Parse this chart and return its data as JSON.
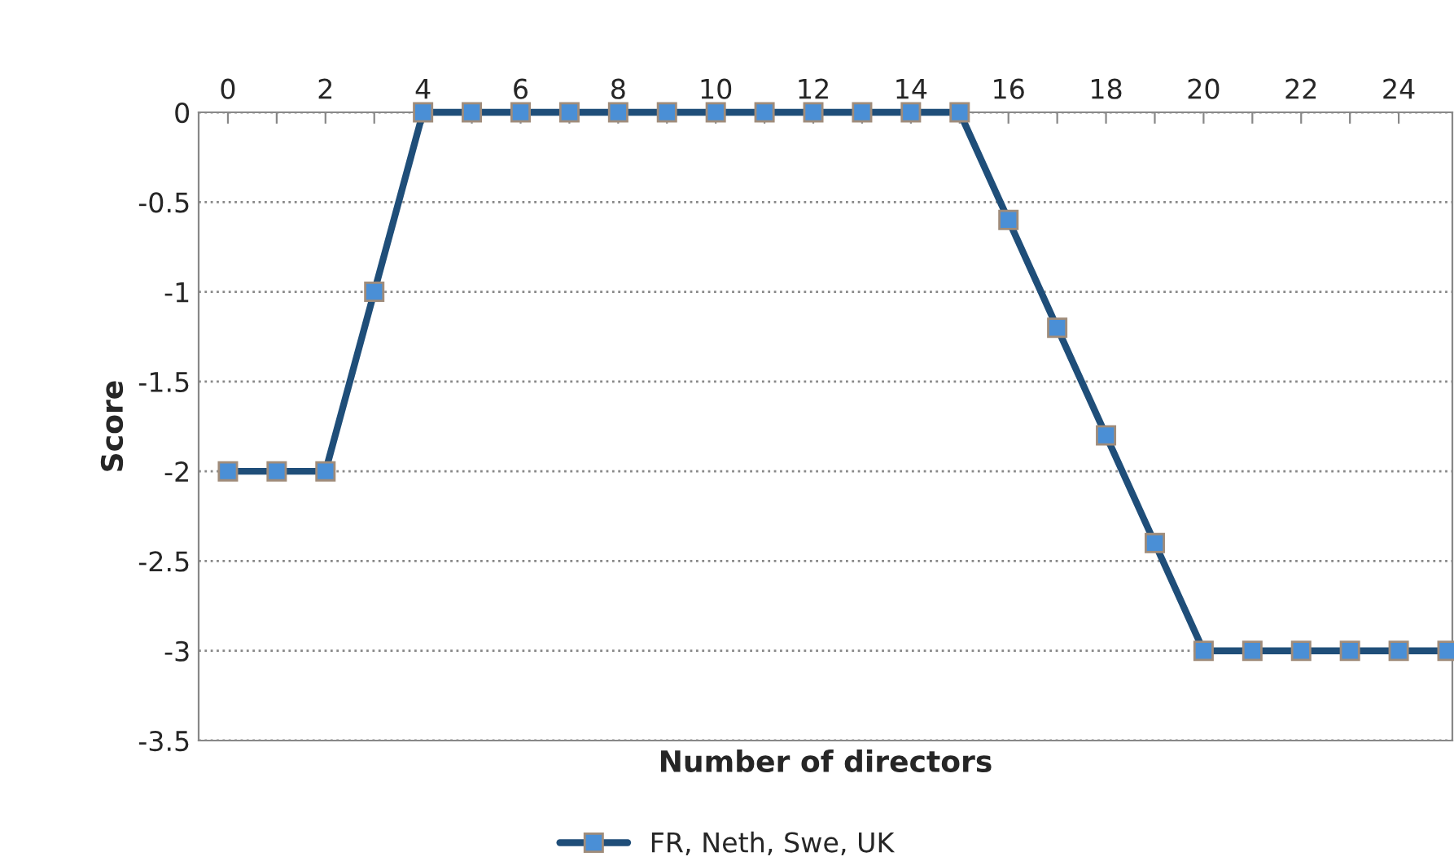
{
  "chart_data": {
    "type": "line",
    "xlabel": "Number of directors",
    "ylabel": "Score",
    "x": [
      0,
      1,
      2,
      3,
      4,
      5,
      6,
      7,
      8,
      9,
      10,
      11,
      12,
      13,
      14,
      15,
      16,
      17,
      18,
      19,
      20,
      21,
      22,
      23,
      24,
      25
    ],
    "series": [
      {
        "name": "FR, Neth, Swe, UK",
        "color": "#1f4e79",
        "values": [
          -2,
          -2,
          -2,
          -1,
          0,
          0,
          0,
          0,
          0,
          0,
          0,
          0,
          0,
          0,
          0,
          0,
          -0.6,
          -1.2,
          -1.8,
          -2.4,
          -3,
          -3,
          -3,
          -3,
          -3,
          -3
        ]
      }
    ],
    "xlim": [
      -0.6,
      25.1
    ],
    "ylim": [
      -3.5,
      0
    ],
    "xticks": [
      0,
      {
        "value": 1,
        "label": null
      },
      2,
      {
        "value": 3,
        "label": null
      },
      4,
      {
        "value": 5,
        "label": null
      },
      6,
      {
        "value": 7,
        "label": null
      },
      8,
      {
        "value": 9,
        "label": null
      },
      10,
      {
        "value": 11,
        "label": null
      },
      12,
      {
        "value": 13,
        "label": null
      },
      14,
      {
        "value": 15,
        "label": null
      },
      16,
      {
        "value": 17,
        "label": null
      },
      18,
      {
        "value": 19,
        "label": null
      },
      20,
      {
        "value": 21,
        "label": null
      },
      22,
      {
        "value": 23,
        "label": null
      },
      24
    ],
    "yticks": [
      0,
      -0.5,
      -1,
      -1.5,
      -2,
      -2.5,
      -3,
      -3.5
    ],
    "grid": "y",
    "legend": "bottom",
    "marker": "square",
    "line_style": "solid"
  }
}
